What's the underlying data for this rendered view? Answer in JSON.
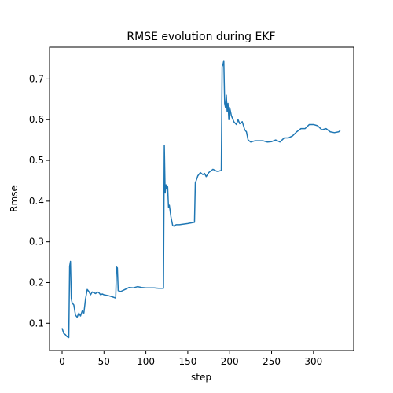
{
  "chart_data": {
    "type": "line",
    "title": "RMSE evolution during EKF",
    "xlabel": "step",
    "ylabel": "Rmse",
    "xlim": [
      -15,
      348
    ],
    "ylim": [
      0.033,
      0.778
    ],
    "xticks": [
      0,
      50,
      100,
      150,
      200,
      250,
      300
    ],
    "yticks": [
      0.1,
      0.2,
      0.3,
      0.4,
      0.5,
      0.6,
      0.7
    ],
    "ytick_labels": [
      "0.1",
      "0.2",
      "0.3",
      "0.4",
      "0.5",
      "0.6",
      "0.7"
    ],
    "grid": false,
    "line_color": "#1f77b4",
    "series": [
      {
        "x": [
          0,
          2,
          4,
          6,
          8,
          9,
          10,
          11,
          12,
          14,
          16,
          18,
          20,
          22,
          24,
          26,
          28,
          30,
          32,
          34,
          36,
          38,
          40,
          42,
          44,
          46,
          48,
          50,
          55,
          60,
          64,
          65,
          66,
          67,
          70,
          75,
          80,
          85,
          90,
          95,
          100,
          110,
          115,
          120,
          121,
          122,
          123,
          124,
          125,
          126,
          127,
          128,
          130,
          132,
          134,
          136,
          140,
          150,
          158,
          159,
          160,
          162,
          165,
          168,
          170,
          172,
          175,
          180,
          185,
          190,
          191,
          192,
          193,
          194,
          195,
          196,
          197,
          198,
          199,
          200,
          202,
          205,
          208,
          210,
          212,
          215,
          218,
          220,
          222,
          225,
          230,
          235,
          240,
          245,
          250,
          255,
          260,
          265,
          270,
          275,
          280,
          285,
          290,
          295,
          300,
          305,
          310,
          315,
          320,
          325,
          330,
          332
        ],
        "y": [
          0.088,
          0.075,
          0.072,
          0.067,
          0.065,
          0.24,
          0.252,
          0.16,
          0.15,
          0.145,
          0.12,
          0.115,
          0.125,
          0.118,
          0.13,
          0.125,
          0.16,
          0.183,
          0.178,
          0.17,
          0.177,
          0.175,
          0.173,
          0.177,
          0.175,
          0.17,
          0.172,
          0.17,
          0.168,
          0.165,
          0.162,
          0.238,
          0.236,
          0.18,
          0.178,
          0.183,
          0.188,
          0.187,
          0.19,
          0.188,
          0.187,
          0.187,
          0.186,
          0.186,
          0.186,
          0.537,
          0.42,
          0.44,
          0.43,
          0.435,
          0.385,
          0.39,
          0.36,
          0.34,
          0.338,
          0.342,
          0.342,
          0.345,
          0.348,
          0.445,
          0.45,
          0.462,
          0.47,
          0.465,
          0.468,
          0.46,
          0.47,
          0.478,
          0.473,
          0.475,
          0.73,
          0.735,
          0.745,
          0.64,
          0.63,
          0.66,
          0.62,
          0.64,
          0.6,
          0.63,
          0.61,
          0.595,
          0.588,
          0.6,
          0.59,
          0.595,
          0.575,
          0.57,
          0.55,
          0.545,
          0.548,
          0.548,
          0.548,
          0.545,
          0.546,
          0.55,
          0.545,
          0.555,
          0.555,
          0.56,
          0.57,
          0.578,
          0.578,
          0.588,
          0.588,
          0.585,
          0.575,
          0.578,
          0.57,
          0.568,
          0.57,
          0.573
        ]
      }
    ]
  }
}
